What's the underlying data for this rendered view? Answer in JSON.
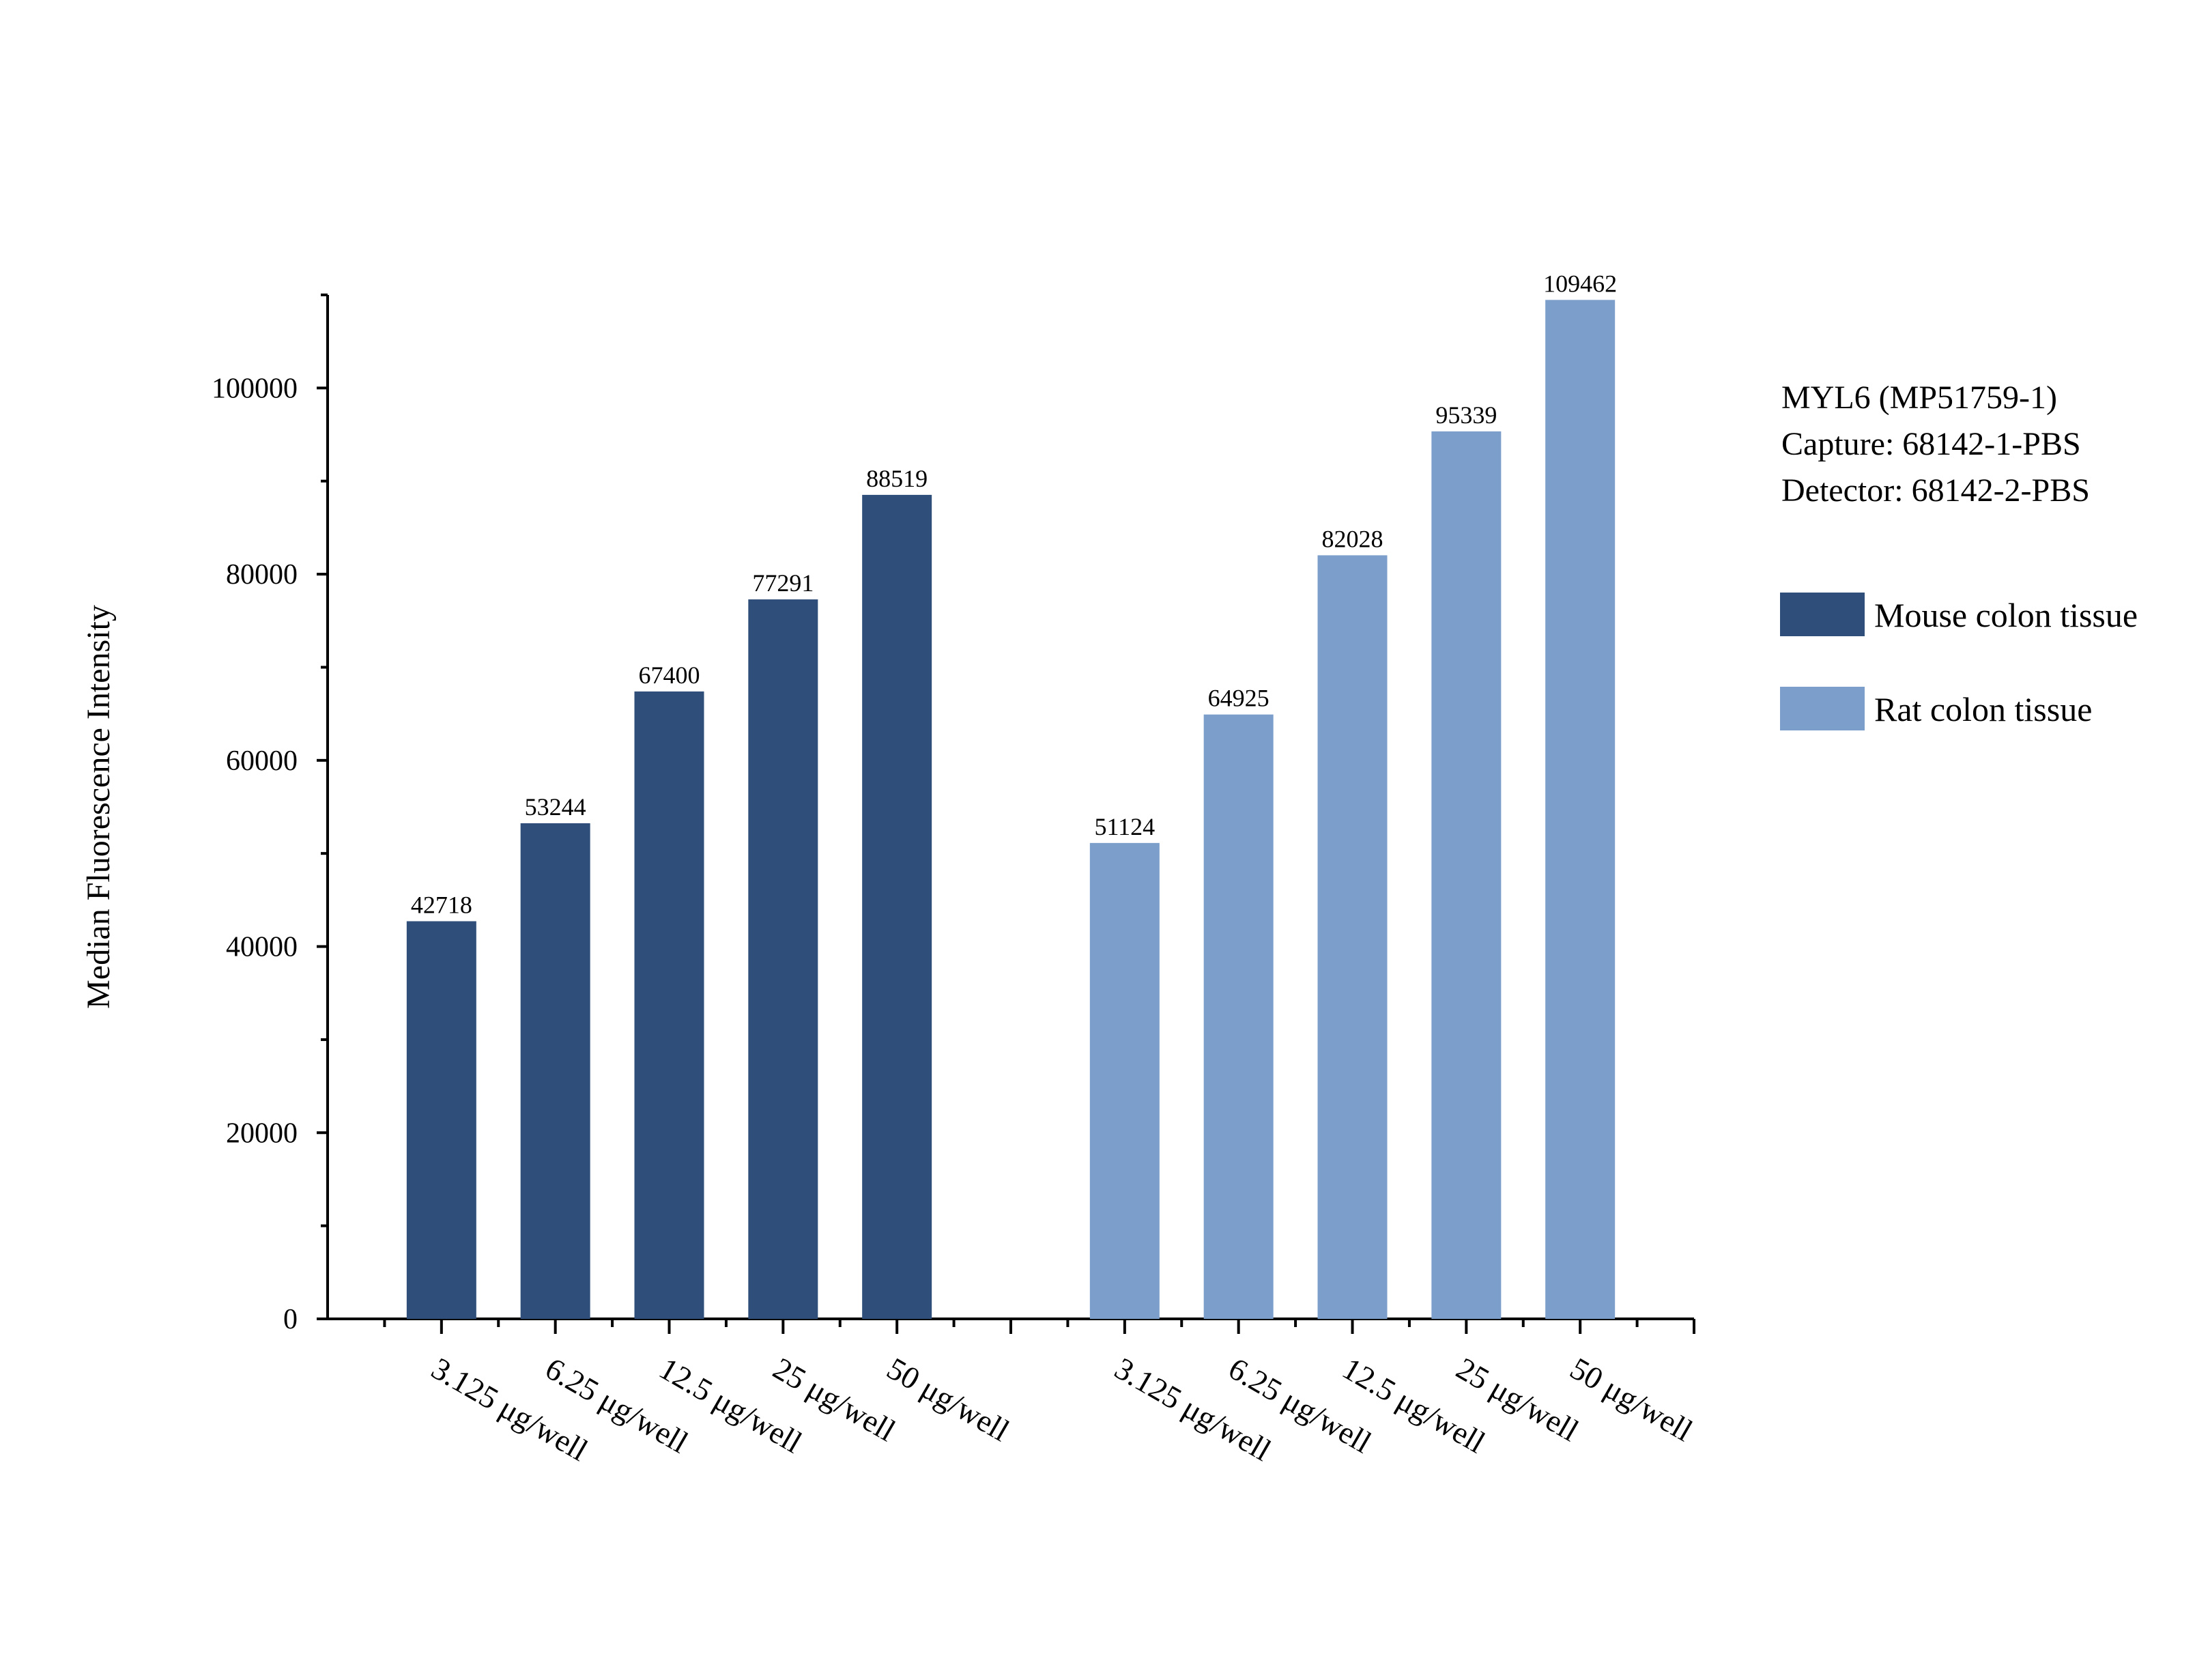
{
  "chart_data": {
    "type": "bar",
    "ylabel": "Median Fluorescence Intensity",
    "xlabel": "",
    "ylim": [
      0,
      110000
    ],
    "y_ticks": [
      "0",
      "20000",
      "40000",
      "60000",
      "80000",
      "100000"
    ],
    "grid": false,
    "legend_position": "right",
    "annotation_lines": [
      "MYL6 (MP51759-1)",
      "Capture: 68142-1-PBS",
      "Detector: 68142-2-PBS"
    ],
    "series": [
      {
        "name": "Mouse colon tissue",
        "color": "#2f4f7a",
        "categories": [
          "3.125 μg/well",
          "6.25 μg/well",
          "12.5 μg/well",
          "25 μg/well",
          "50 μg/well"
        ],
        "values": [
          42718,
          53244,
          67400,
          77291,
          88519
        ],
        "value_labels": [
          "42718",
          "53244",
          "67400",
          "77291",
          "88519"
        ]
      },
      {
        "name": "Rat colon tissue",
        "color": "#7b9ecb",
        "categories": [
          "3.125 μg/well",
          "6.25 μg/well",
          "12.5 μg/well",
          "25 μg/well",
          "50 μg/well"
        ],
        "values": [
          51124,
          64925,
          82028,
          95339,
          109462
        ],
        "value_labels": [
          "51124",
          "64925",
          "82028",
          "95339",
          "109462"
        ]
      }
    ]
  }
}
